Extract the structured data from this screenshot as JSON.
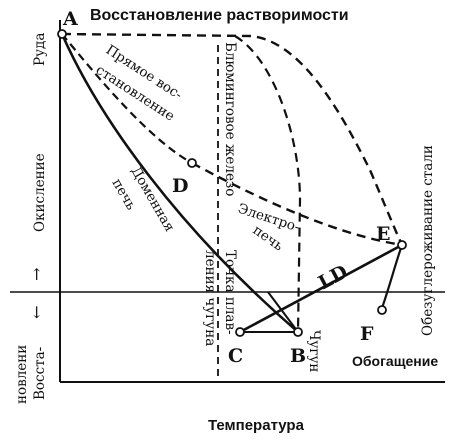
{
  "diagram": {
    "title": "Восстановление растворимости",
    "x_axis_label": "Температура",
    "y_axis": {
      "top": "Руда",
      "middle": "Окисление",
      "lower_1": "Восста-",
      "lower_2": "новлени"
    },
    "vertical_labels": {
      "blooming_iron": "Блюминговое железо",
      "melting_point_1": "Точка плав-",
      "melting_point_2": "ления чугуна",
      "pig_iron": "Чугун",
      "decarburization": "Обезуглероживание стали"
    },
    "curve_labels": {
      "direct_reduction_1": "Прямое вос-",
      "direct_reduction_2": "становление",
      "blast_furnace_1": "Доменная",
      "blast_furnace_2": "печь",
      "electric_furnace_1": "Электро-",
      "electric_furnace_2": "печь",
      "ld": "LD",
      "enrichment": "Обогащение"
    },
    "points": {
      "A": "A",
      "B": "B",
      "C": "C",
      "D": "D",
      "E": "E",
      "F": "F"
    },
    "arrow_up": "↑",
    "arrow_down": "↓"
  }
}
